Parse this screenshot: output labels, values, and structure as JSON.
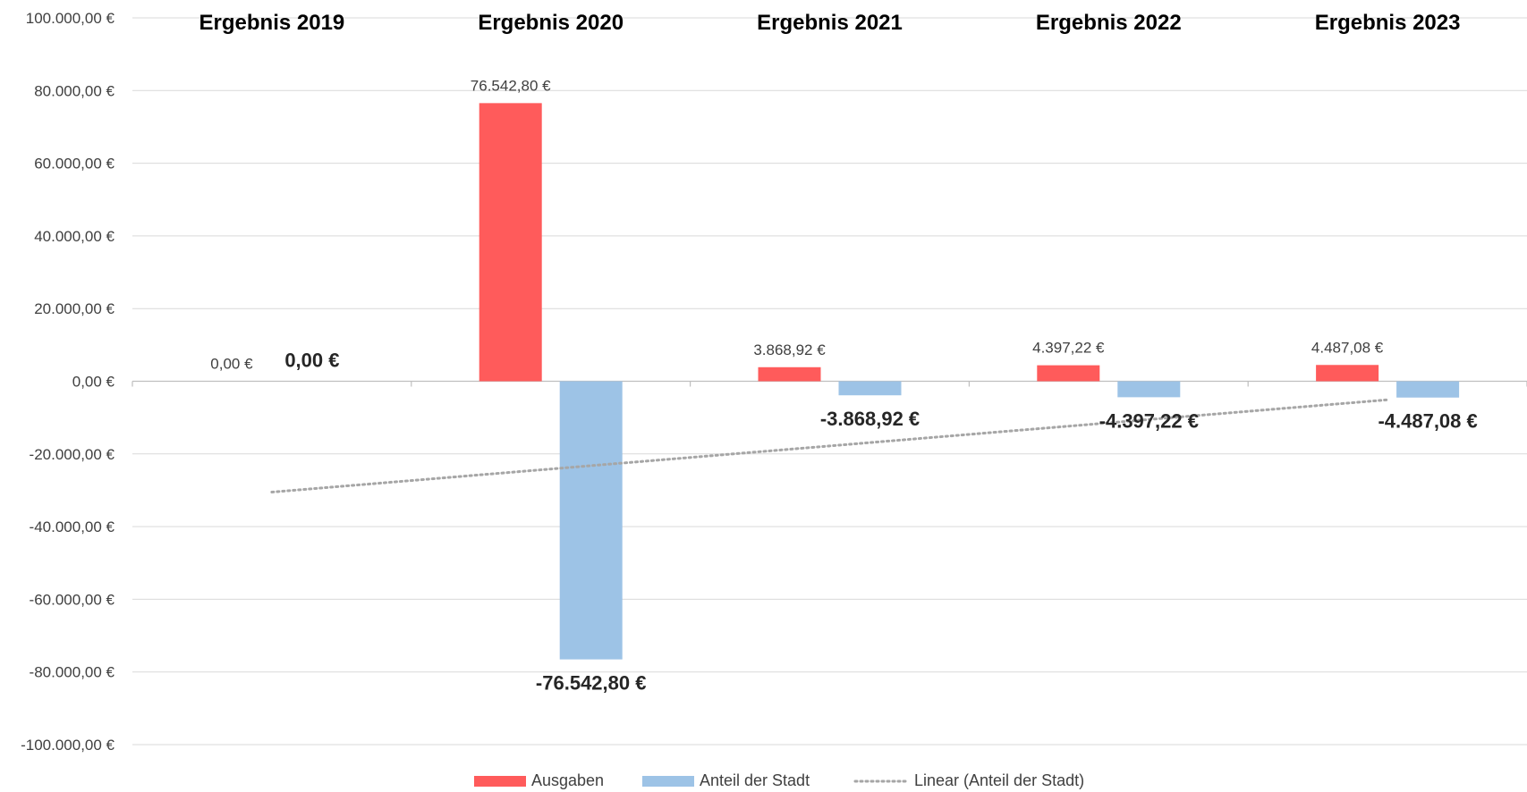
{
  "chart_data": {
    "type": "bar",
    "title": "",
    "xlabel": "",
    "ylabel": "",
    "categories": [
      "Ergebnis 2019",
      "Ergebnis 2020",
      "Ergebnis 2021",
      "Ergebnis 2022",
      "Ergebnis 2023"
    ],
    "ylim": [
      -100000,
      100000
    ],
    "yticks": [
      100000,
      80000,
      60000,
      40000,
      20000,
      0,
      -20000,
      -40000,
      -60000,
      -80000,
      -100000
    ],
    "ytick_labels": [
      "100.000,00 €",
      "80.000,00 €",
      "60.000,00 €",
      "40.000,00 €",
      "20.000,00 €",
      "0,00 €",
      "-20.000,00 €",
      "-40.000,00 €",
      "-60.000,00 €",
      "-80.000,00 €",
      "-100.000,00 €"
    ],
    "grid": true,
    "legend_position": "bottom",
    "series": [
      {
        "name": "Ausgaben",
        "color": "#FF5B5B",
        "values": [
          0,
          76542.8,
          3868.92,
          4397.22,
          4487.08
        ],
        "data_labels": [
          "0,00 €",
          "76.542,80 €",
          "3.868,92 €",
          "4.397,22 €",
          "4.487,08 €"
        ]
      },
      {
        "name": "Anteil der Stadt",
        "color": "#9DC3E6",
        "values": [
          0,
          -76542.8,
          -3868.92,
          -4397.22,
          -4487.08
        ],
        "data_labels": [
          "0,00 €",
          "-76.542,80 €",
          "-3.868,92 €",
          "-4.397,22 €",
          "-4.487,08 €"
        ]
      }
    ],
    "trendline": {
      "name": "Linear (Anteil der Stadt)",
      "type": "linear",
      "color": "#A6A6A6",
      "style": "dotted",
      "start_value": -30500,
      "end_value": -5100
    }
  }
}
